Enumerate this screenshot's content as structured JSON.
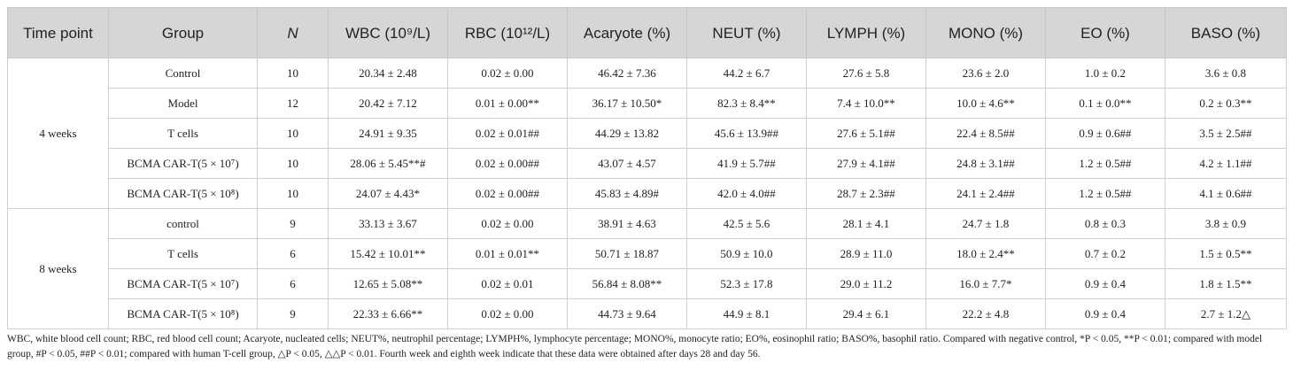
{
  "table": {
    "header": [
      "Time point",
      "Group",
      "N",
      "WBC (10⁹/L)",
      "RBC (10¹²/L)",
      "Acaryote (%)",
      "NEUT (%)",
      "LYMPH (%)",
      "MONO (%)",
      "EO (%)",
      "BASO (%)"
    ],
    "groups": [
      {
        "time": "4 weeks",
        "rows": [
          [
            "Control",
            "10",
            "20.34 ± 2.48",
            "0.02 ± 0.00",
            "46.42 ± 7.36",
            "44.2 ± 6.7",
            "27.6 ± 5.8",
            "23.6 ± 2.0",
            "1.0 ± 0.2",
            "3.6 ± 0.8"
          ],
          [
            "Model",
            "12",
            "20.42 ± 7.12",
            "0.01 ± 0.00**",
            "36.17 ± 10.50*",
            "82.3 ± 8.4**",
            "7.4 ± 10.0**",
            "10.0 ± 4.6**",
            "0.1 ± 0.0**",
            "0.2 ± 0.3**"
          ],
          [
            "T cells",
            "10",
            "24.91 ± 9.35",
            "0.02 ± 0.01##",
            "44.29 ± 13.82",
            "45.6 ± 13.9##",
            "27.6 ± 5.1##",
            "22.4 ± 8.5##",
            "0.9 ± 0.6##",
            "3.5 ± 2.5##"
          ],
          [
            "BCMA CAR-T(5 × 10⁷)",
            "10",
            "28.06 ± 5.45**#",
            "0.02 ± 0.00##",
            "43.07 ± 4.57",
            "41.9 ± 5.7##",
            "27.9 ± 4.1##",
            "24.8 ± 3.1##",
            "1.2 ± 0.5##",
            "4.2 ± 1.1##"
          ],
          [
            "BCMA CAR-T(5 × 10⁸)",
            "10",
            "24.07 ± 4.43*",
            "0.02 ± 0.00##",
            "45.83 ± 4.89#",
            "42.0 ± 4.0##",
            "28.7 ± 2.3##",
            "24.1 ± 2.4##",
            "1.2 ± 0.5##",
            "4.1 ± 0.6##"
          ]
        ]
      },
      {
        "time": "8 weeks",
        "rows": [
          [
            "control",
            "9",
            "33.13 ± 3.67",
            "0.02 ± 0.00",
            "38.91 ± 4.63",
            "42.5 ± 5.6",
            "28.1 ± 4.1",
            "24.7 ± 1.8",
            "0.8 ± 0.3",
            "3.8 ± 0.9"
          ],
          [
            "T cells",
            "6",
            "15.42 ± 10.01**",
            "0.01 ± 0.01**",
            "50.71 ± 18.87",
            "50.9 ± 10.0",
            "28.9 ± 11.0",
            "18.0 ± 2.4**",
            "0.7 ± 0.2",
            "1.5 ± 0.5**"
          ],
          [
            "BCMA CAR-T(5 × 10⁷)",
            "6",
            "12.65 ± 5.08**",
            "0.02 ± 0.01",
            "56.84 ± 8.08**",
            "52.3 ± 17.8",
            "29.0 ± 11.2",
            "16.0 ± 7.7*",
            "0.9 ± 0.4",
            "1.8 ± 1.5**"
          ],
          [
            "BCMA CAR-T(5 × 10⁸)",
            "9",
            "22.33 ± 6.66**",
            "0.02 ± 0.00",
            "44.73 ± 9.64",
            "44.9 ± 8.1",
            "29.4 ± 6.1",
            "22.2 ± 4.8",
            "0.9 ± 0.4",
            "2.7 ± 1.2△"
          ]
        ]
      }
    ]
  },
  "footnote": "WBC, white blood cell count; RBC, red blood cell count; Acaryote, nucleated cells; NEUT%, neutrophil percentage; LYMPH%, lymphocyte percentage; MONO%, monocyte ratio; EO%, eosinophil ratio; BASO%, basophil ratio. Compared with negative control, *P < 0.05, **P < 0.01; compared with model group, #P < 0.05, ##P < 0.01; compared with human T-cell group, △P < 0.05, △△P < 0.01. Fourth week and eighth week indicate that these data were obtained after days 28 and day 56."
}
